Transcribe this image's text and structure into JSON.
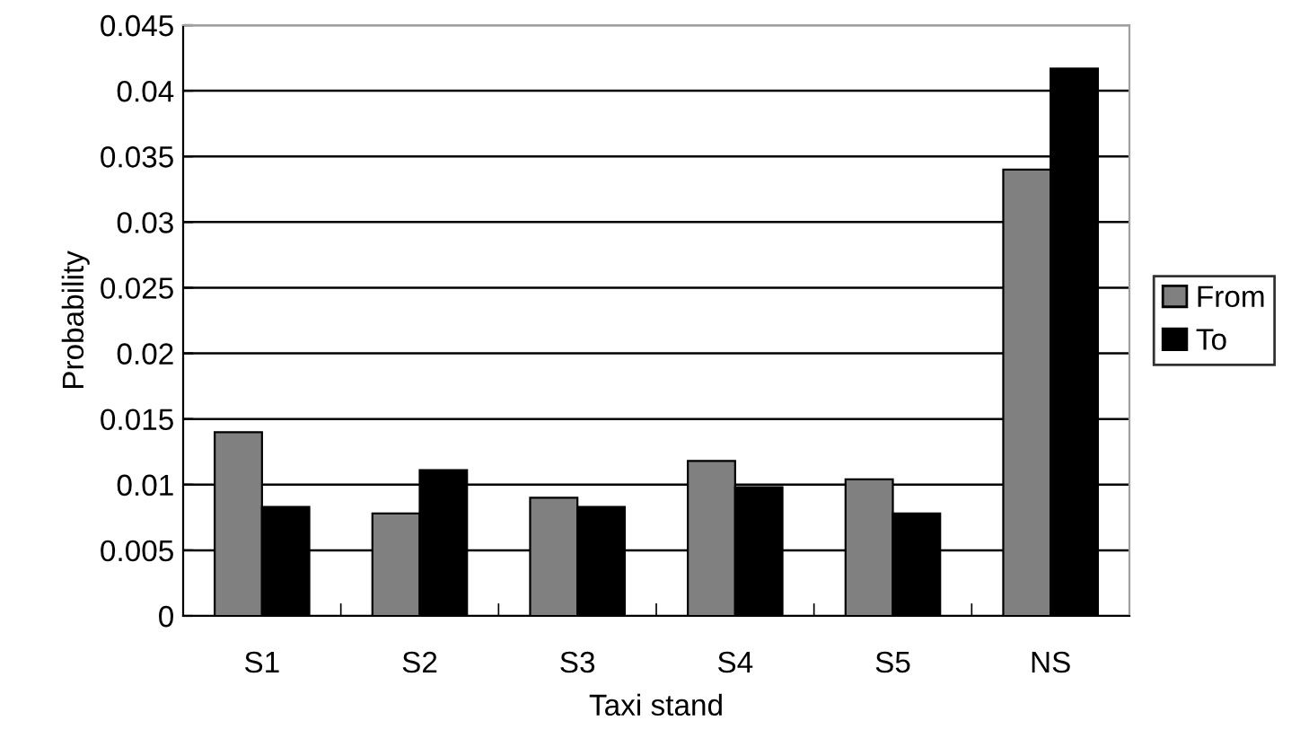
{
  "chart_data": {
    "type": "bar",
    "xlabel": "Taxi stand",
    "ylabel": "Probability",
    "categories": [
      "S1",
      "S2",
      "S3",
      "S4",
      "S5",
      "NS"
    ],
    "series": [
      {
        "name": "From",
        "color": "#808080",
        "values": [
          0.014,
          0.0078,
          0.009,
          0.0118,
          0.0104,
          0.034
        ]
      },
      {
        "name": "To",
        "color": "#000000",
        "values": [
          0.0083,
          0.0111,
          0.0083,
          0.0098,
          0.0078,
          0.0417
        ]
      }
    ],
    "ylim": [
      0,
      0.045
    ],
    "yticks": [
      0,
      0.005,
      0.01,
      0.015,
      0.02,
      0.025,
      0.03,
      0.035,
      0.04,
      0.045
    ],
    "grid": "y",
    "legend": "right"
  }
}
